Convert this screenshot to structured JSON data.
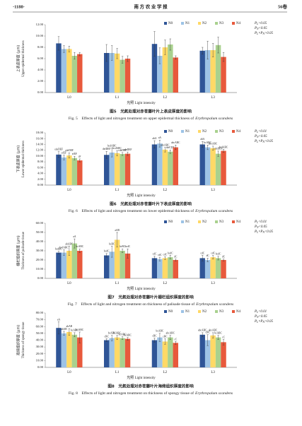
{
  "header": {
    "page": "·1188·",
    "journal": "南 方 农 业 学 报",
    "volume": "56卷"
  },
  "chart_data": [
    {
      "type": "bar",
      "caption_cn": "图5　光氮处理对赤苍藤叶片上表皮厚度的影响",
      "caption_en": "Fig. 5　Effects of light and nitrogen treatment on upper epidermal thickness of",
      "species": "Erythropalum scandens",
      "y_label_cn": "上表皮厚度 (μm)",
      "y_label_en": "Upper epidermal thickness",
      "x_label": "光照 Light intensity",
      "legend": "top-right",
      "categories": [
        "L0",
        "L1",
        "L2",
        "L3"
      ],
      "series": [
        {
          "name": "N0",
          "color": "#2f5597",
          "values": [
            8.7,
            7.0,
            8.6,
            7.4
          ],
          "errors": [
            1.2,
            1.5,
            2.2,
            0.6
          ]
        },
        {
          "name": "N1",
          "color": "#9dc3e6",
          "values": [
            7.7,
            7.0,
            6.5,
            7.5
          ],
          "errors": [
            0.6,
            1.3,
            1.4,
            1.6
          ]
        },
        {
          "name": "N2",
          "color": "#ffd966",
          "values": [
            7.7,
            6.9,
            8.0,
            7.5
          ],
          "errors": [
            0.5,
            0.9,
            1.3,
            1.2
          ]
        },
        {
          "name": "N3",
          "color": "#a9d18e",
          "values": [
            6.5,
            5.8,
            8.5,
            8.4
          ],
          "errors": [
            0.6,
            0.6,
            1.0,
            1.4
          ]
        },
        {
          "name": "N4",
          "color": "#e8593c",
          "values": [
            6.8,
            6.0,
            6.2,
            6.3
          ],
          "errors": [
            0.3,
            0.5,
            0.3,
            0.8
          ]
        }
      ],
      "ylim": [
        0,
        12
      ],
      "yticks": [
        {
          "value": 0,
          "label": "0.00"
        },
        {
          "value": 2,
          "label": "2.00"
        },
        {
          "value": 4,
          "label": "4.00"
        },
        {
          "value": 6,
          "label": "6.00"
        },
        {
          "value": 8,
          "label": "8.00"
        },
        {
          "value": 10,
          "label": "10.00"
        },
        {
          "value": 12,
          "label": "12.00"
        }
      ],
      "stats": [
        [
          {
            "text": "P"
          },
          {
            "text": "L",
            "sub": true
          },
          {
            "text": ">0.05"
          }
        ],
        [
          {
            "text": "P"
          },
          {
            "text": "N",
            "sub": true
          },
          {
            "text": "<0.05"
          }
        ],
        [
          {
            "text": "P"
          },
          {
            "text": "L",
            "sub": true
          },
          {
            "text": "×P"
          },
          {
            "text": "N",
            "sub": true
          },
          {
            "text": ">0.05"
          }
        ]
      ]
    },
    {
      "type": "bar",
      "caption_cn": "图6　光氮处理对赤苍藤叶片下表皮厚度的影响",
      "caption_en": "Fig. 6　Effects of light and nitrogen treatment on lower epidermal thickness of",
      "species": "Erythropalum scandens",
      "y_label_cn": "下表皮厚度 (μm)",
      "y_label_en": "Lower epidermal thickness",
      "x_label": "光照 Light intensity",
      "legend": "top-right",
      "categories": [
        "L0",
        "L1",
        "L2",
        "L3"
      ],
      "series": [
        {
          "name": "N0",
          "color": "#2f5597",
          "values": [
            10.5,
            10.4,
            14.0,
            14.0
          ],
          "errors": [
            1.0,
            1.2,
            1.3,
            1.0
          ],
          "letters": [
            "cdeDEF",
            "defDEF",
            "abA",
            "abA"
          ]
        },
        {
          "name": "N1",
          "color": "#9dc3e6",
          "values": [
            9.5,
            11.2,
            14.3,
            13.0
          ],
          "errors": [
            0.8,
            1.5,
            1.2,
            0.8
          ],
          "letters": [
            "efEF",
            "bcdABC",
            "aA",
            "bcABC"
          ]
        },
        {
          "name": "N2",
          "color": "#ffd966",
          "values": [
            10.2,
            11.0,
            12.2,
            12.7
          ],
          "errors": [
            0.9,
            0.9,
            0.8,
            0.7
          ],
          "letters": [
            "cdeDEF",
            "bcdABC",
            "abcABC",
            "abcABC"
          ]
        },
        {
          "name": "N3",
          "color": "#a9d18e",
          "values": [
            9.3,
            10.7,
            11.5,
            10.8
          ],
          "errors": [
            0.6,
            0.5,
            0.6,
            0.9
          ],
          "letters": [
            "efEF",
            "cdeDEF",
            "defCDE",
            "cdeDEF"
          ]
        },
        {
          "name": "N4",
          "color": "#e8593c",
          "values": [
            8.5,
            10.8,
            13.0,
            11.8
          ],
          "errors": [
            0.5,
            0.6,
            0.8,
            0.5
          ],
          "letters": [
            "fF",
            "cdeDEF",
            "abcABC",
            "bcdABC"
          ]
        }
      ],
      "ylim": [
        0,
        18
      ],
      "yticks": [
        {
          "value": 0,
          "label": "0.00"
        },
        {
          "value": 2,
          "label": "2.00"
        },
        {
          "value": 4,
          "label": "4.00"
        },
        {
          "value": 6,
          "label": "6.00"
        },
        {
          "value": 8,
          "label": "8.00"
        },
        {
          "value": 10,
          "label": "10.00"
        },
        {
          "value": 12,
          "label": "12.00"
        },
        {
          "value": 14,
          "label": "14.00"
        },
        {
          "value": 16,
          "label": "16.00"
        },
        {
          "value": 18,
          "label": "18.00"
        }
      ],
      "stats": [
        [
          {
            "text": "P"
          },
          {
            "text": "L",
            "sub": true
          },
          {
            "text": "<0.01"
          }
        ],
        [
          {
            "text": "P"
          },
          {
            "text": "N",
            "sub": true
          },
          {
            "text": "<0.05"
          }
        ],
        [
          {
            "text": "P"
          },
          {
            "text": "L",
            "sub": true
          },
          {
            "text": "×P"
          },
          {
            "text": "N",
            "sub": true
          },
          {
            "text": "<0.05"
          }
        ]
      ]
    },
    {
      "type": "bar",
      "caption_cn": "图7　光氮处理对赤苍藤叶片栅栏组织厚度的影响",
      "caption_en": "Fig. 7　Effects of light and nitrogen treatment on thickness of palisade tissue of",
      "species": "Erythropalum scandens",
      "y_label_cn": "栅栏组织厚度 (μm)",
      "y_label_en": "Thickness of palisade tissue",
      "x_label": "光照 Light intensity",
      "legend": "top-right",
      "categories": [
        "L0",
        "L1",
        "L2",
        "L3"
      ],
      "series": [
        {
          "name": "N0",
          "color": "#2f5597",
          "values": [
            28,
            25,
            22,
            22
          ],
          "errors": [
            1.5,
            2,
            2,
            3
          ],
          "letters": [
            "bcdBC",
            "bcdC",
            "cdC",
            "cdC"
          ]
        },
        {
          "name": "N1",
          "color": "#9dc3e6",
          "values": [
            28,
            29,
            21,
            20
          ],
          "errors": [
            3,
            6,
            2,
            2
          ],
          "letters": [
            "bcdABC",
            "bcBC",
            "cdC",
            "dC"
          ]
        },
        {
          "name": "N2",
          "color": "#ffd966",
          "values": [
            30,
            42,
            22,
            23
          ],
          "errors": [
            5,
            8,
            1.5,
            2
          ],
          "letters": [
            "abABC",
            "aAB",
            "cdC",
            "cdC"
          ]
        },
        {
          "name": "N3",
          "color": "#a9d18e",
          "values": [
            38,
            30,
            23,
            22
          ],
          "errors": [
            5,
            2,
            2,
            2
          ],
          "letters": [
            "aA",
            "bcBC",
            "bcdC",
            "bcdC"
          ]
        },
        {
          "name": "N4",
          "color": "#e8593c",
          "values": [
            30,
            27,
            20,
            20
          ],
          "errors": [
            2,
            5,
            1,
            1
          ],
          "letters": [
            "bcABC",
            "bcdC",
            "dC",
            "dC"
          ]
        }
      ],
      "ylim": [
        0,
        60
      ],
      "yticks": [
        {
          "value": 0,
          "label": "0.00"
        },
        {
          "value": 10,
          "label": "10.00"
        },
        {
          "value": 20,
          "label": "20.00"
        },
        {
          "value": 30,
          "label": "30.00"
        },
        {
          "value": 40,
          "label": "40.00"
        },
        {
          "value": 50,
          "label": "50.00"
        },
        {
          "value": 60,
          "label": "60.00"
        }
      ],
      "stats": [
        [
          {
            "text": "P"
          },
          {
            "text": "L",
            "sub": true
          },
          {
            "text": "<0.01"
          }
        ],
        [
          {
            "text": "P"
          },
          {
            "text": "N",
            "sub": true
          },
          {
            "text": "<0.05"
          }
        ],
        [
          {
            "text": "P"
          },
          {
            "text": "L",
            "sub": true
          },
          {
            "text": "×P"
          },
          {
            "text": "N",
            "sub": true
          },
          {
            "text": "<0.05"
          }
        ]
      ]
    },
    {
      "type": "bar",
      "caption_cn": "图8　光氮处理对赤苍藤叶片海绵组织厚度的影响",
      "caption_en": "Fig. 8　Effects of light and nitrogen treatment on thickness of spongy tissue of",
      "species": "Erythropalum scandens",
      "y_label_cn": "海绵组织厚度 (μm)",
      "y_label_en": "Thickness of spongy tissue",
      "x_label": "光照 Light intensity",
      "legend": "top-right",
      "categories": [
        "L0",
        "L1",
        "L2",
        "L3"
      ],
      "series": [
        {
          "name": "N0",
          "color": "#2f5597",
          "values": [
            58,
            40,
            40,
            48
          ],
          "errors": [
            9,
            2,
            3,
            3
          ],
          "letters": [
            "aA",
            "cBC",
            "cBC",
            "abcABC"
          ]
        },
        {
          "name": "N1",
          "color": "#9dc3e6",
          "values": [
            50,
            43,
            44,
            40
          ],
          "errors": [
            3,
            4,
            6,
            8
          ],
          "letters": [
            "abAB",
            "bcABC",
            "bcABC",
            "cBC"
          ]
        },
        {
          "name": "N2",
          "color": "#ffd966",
          "values": [
            52,
            44,
            38,
            47
          ],
          "errors": [
            5,
            3,
            4,
            4
          ],
          "letters": [
            "abAB",
            "bcABC",
            "cBC",
            "abcABC"
          ]
        },
        {
          "name": "N3",
          "color": "#a9d18e",
          "values": [
            48,
            43,
            44,
            44
          ],
          "errors": [
            3,
            2,
            3,
            3
          ],
          "letters": [
            "bcABC",
            "bcABC",
            "abcABC",
            "bcABC"
          ]
        },
        {
          "name": "N4",
          "color": "#e8593c",
          "values": [
            44,
            42,
            36,
            37
          ],
          "errors": [
            8,
            2,
            2,
            4
          ],
          "letters": [
            "bcABC",
            "bcABC",
            "cC",
            "cC"
          ]
        }
      ],
      "ylim": [
        0,
        80
      ],
      "yticks": [
        {
          "value": 0,
          "label": "0.00"
        },
        {
          "value": 10,
          "label": "10.00"
        },
        {
          "value": 20,
          "label": "20.00"
        },
        {
          "value": 30,
          "label": "30.00"
        },
        {
          "value": 40,
          "label": "40.00"
        },
        {
          "value": 50,
          "label": "50.00"
        },
        {
          "value": 60,
          "label": "60.00"
        },
        {
          "value": 70,
          "label": "70.00"
        },
        {
          "value": 80,
          "label": "80.00"
        }
      ],
      "stats": [
        [
          {
            "text": "P"
          },
          {
            "text": "L",
            "sub": true
          },
          {
            "text": "<0.01"
          }
        ],
        [
          {
            "text": "P"
          },
          {
            "text": "N",
            "sub": true
          },
          {
            "text": "<0.05"
          }
        ],
        [
          {
            "text": "P"
          },
          {
            "text": "L",
            "sub": true
          },
          {
            "text": "×P"
          },
          {
            "text": "N",
            "sub": true
          },
          {
            "text": ">0.05"
          }
        ]
      ]
    }
  ]
}
